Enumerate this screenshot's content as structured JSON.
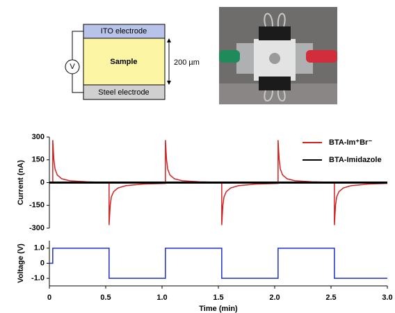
{
  "diagram": {
    "top": "ITO electrode",
    "middle": "Sample",
    "bottom": "Steel electrode",
    "source": "V",
    "thickness": "200 µm"
  },
  "chart_data": [
    {
      "type": "line",
      "ylabel": "Current (nA)",
      "xlim": [
        0,
        3.0
      ],
      "ylim": [
        -300,
        300
      ],
      "yticks": [
        300,
        150,
        0,
        -150,
        -300
      ],
      "legend": "upper right",
      "series": [
        {
          "name": "BTA-Im⁺Br⁻",
          "color": "#d42020",
          "x": [
            0,
            0.03,
            0.03,
            0.04,
            0.05,
            0.07,
            0.11,
            0.18,
            0.33,
            0.53,
            0.53,
            0.54,
            0.55,
            0.57,
            0.61,
            0.68,
            0.83,
            1.03,
            1.03,
            1.04,
            1.05,
            1.07,
            1.11,
            1.18,
            1.33,
            1.53,
            1.53,
            1.54,
            1.55,
            1.57,
            1.61,
            1.68,
            1.83,
            2.03,
            2.03,
            2.04,
            2.05,
            2.07,
            2.11,
            2.18,
            2.33,
            2.53,
            2.53,
            2.54,
            2.55,
            2.57,
            2.61,
            2.68,
            2.83,
            3.0
          ],
          "values": [
            0,
            0,
            280,
            150,
            90,
            50,
            25,
            12,
            5,
            2,
            -280,
            -150,
            -95,
            -60,
            -35,
            -20,
            -10,
            -5,
            280,
            150,
            90,
            50,
            25,
            12,
            5,
            2,
            -280,
            -150,
            -95,
            -60,
            -35,
            -20,
            -10,
            -5,
            280,
            150,
            90,
            50,
            25,
            12,
            5,
            2,
            -280,
            -150,
            -95,
            -60,
            -35,
            -20,
            -10,
            -5
          ]
        },
        {
          "name": "BTA-Imidazole",
          "color": "#000000",
          "x": [
            0,
            3.0
          ],
          "values": [
            0,
            0
          ]
        }
      ]
    },
    {
      "type": "line",
      "ylabel": "Voltage (V)",
      "xlabel": "Time (min)",
      "xlim": [
        0,
        3.0
      ],
      "ylim": [
        -1.5,
        1.5
      ],
      "yticks": [
        {
          "value": 1,
          "label": "1.0"
        },
        0,
        {
          "value": -1,
          "label": "-1.0"
        }
      ],
      "xticks": [
        0,
        0.5,
        {
          "value": 1,
          "label": "1.0"
        },
        1.5,
        {
          "value": 2,
          "label": "2.0"
        },
        2.5,
        {
          "value": 3,
          "label": "3.0"
        }
      ],
      "series": [
        {
          "color": "#1f2fd0",
          "x": [
            0,
            0.03,
            0.03,
            0.53,
            0.53,
            1.03,
            1.03,
            1.53,
            1.53,
            2.03,
            2.03,
            2.53,
            2.53,
            3.0
          ],
          "values": [
            0,
            0,
            1,
            1,
            -1,
            -1,
            1,
            1,
            -1,
            -1,
            1,
            1,
            -1,
            -1
          ]
        }
      ]
    }
  ]
}
